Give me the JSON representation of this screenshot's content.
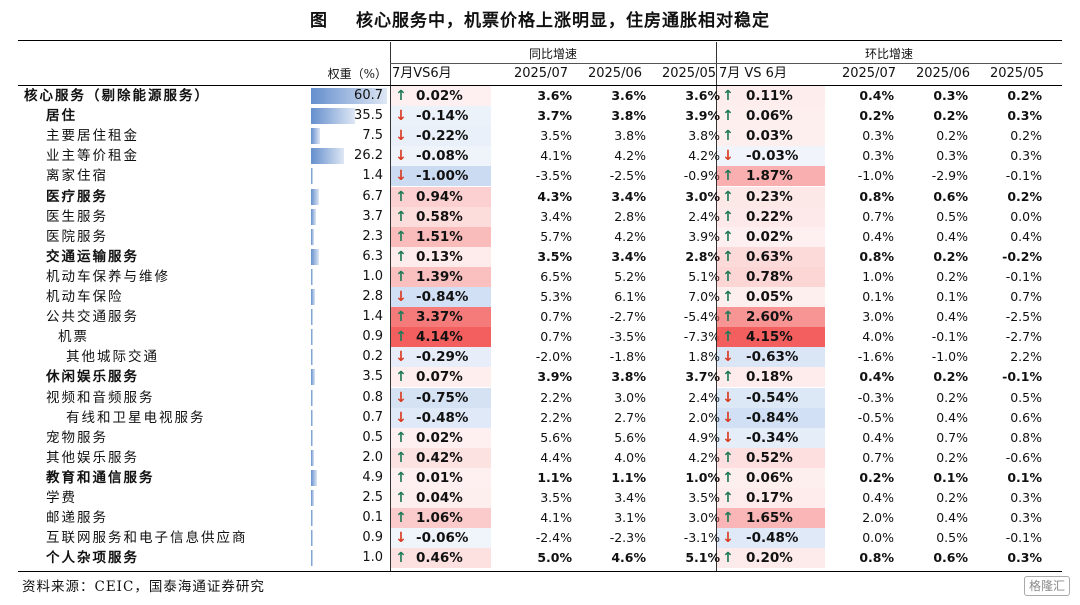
{
  "title": {
    "lead": "图",
    "text": "核心服务中，机票价格上涨明显，住房通胀相对稳定"
  },
  "group_headers": {
    "yoy": "同比增速",
    "mom": "环比增速"
  },
  "headers": {
    "weight": "权重（%）",
    "yoy_vs": "7月VS6月",
    "yoy_c1": "2025/07",
    "yoy_c2": "2025/06",
    "yoy_c3": "2025/05",
    "mom_vs": "7月 VS 6月",
    "mom_c1": "2025/07",
    "mom_c2": "2025/06",
    "mom_c3": "2025/05"
  },
  "colors": {
    "up_arrow": "#1f7a57",
    "down_arrow": "#d93a1f",
    "positive_fill": "#f24b4b",
    "negative_fill": "#5b8fd6",
    "weight_bar": "#4a7bc4"
  },
  "rows": [
    {
      "name": "核心服务（剔除能源服务）",
      "indent": 0,
      "bold": true,
      "weight": "60.7",
      "weight_num": 60.7,
      "yoy_dir": "up",
      "yoy_vs": "0.02%",
      "yoy_vs_num": 0.02,
      "yoy": [
        "3.6%",
        "3.6%",
        "3.6%"
      ],
      "mom_dir": "up",
      "mom_vs": "0.11%",
      "mom_vs_num": 0.11,
      "mom": [
        "0.4%",
        "0.3%",
        "0.2%"
      ]
    },
    {
      "name": "居住",
      "indent": 1,
      "bold": true,
      "weight": "35.5",
      "weight_num": 35.5,
      "yoy_dir": "down",
      "yoy_vs": "-0.14%",
      "yoy_vs_num": -0.14,
      "yoy": [
        "3.7%",
        "3.8%",
        "3.9%"
      ],
      "mom_dir": "up",
      "mom_vs": "0.06%",
      "mom_vs_num": 0.06,
      "mom": [
        "0.2%",
        "0.2%",
        "0.3%"
      ]
    },
    {
      "name": "主要居住租金",
      "indent": 2,
      "bold": false,
      "weight": "7.5",
      "weight_num": 7.5,
      "yoy_dir": "down",
      "yoy_vs": "-0.22%",
      "yoy_vs_num": -0.22,
      "yoy": [
        "3.5%",
        "3.8%",
        "3.8%"
      ],
      "mom_dir": "up",
      "mom_vs": "0.03%",
      "mom_vs_num": 0.03,
      "mom": [
        "0.3%",
        "0.2%",
        "0.2%"
      ]
    },
    {
      "name": "业主等价租金",
      "indent": 2,
      "bold": false,
      "weight": "26.2",
      "weight_num": 26.2,
      "yoy_dir": "down",
      "yoy_vs": "-0.08%",
      "yoy_vs_num": -0.08,
      "yoy": [
        "4.1%",
        "4.2%",
        "4.2%"
      ],
      "mom_dir": "down",
      "mom_vs": "-0.03%",
      "mom_vs_num": -0.03,
      "mom": [
        "0.3%",
        "0.3%",
        "0.3%"
      ]
    },
    {
      "name": "离家住宿",
      "indent": 2,
      "bold": false,
      "weight": "1.4",
      "weight_num": 1.4,
      "yoy_dir": "down",
      "yoy_vs": "-1.00%",
      "yoy_vs_num": -1.0,
      "yoy": [
        "-3.5%",
        "-2.5%",
        "-0.9%"
      ],
      "mom_dir": "up",
      "mom_vs": "1.87%",
      "mom_vs_num": 1.87,
      "mom": [
        "-1.0%",
        "-2.9%",
        "-0.1%"
      ]
    },
    {
      "name": "医疗服务",
      "indent": 1,
      "bold": true,
      "weight": "6.7",
      "weight_num": 6.7,
      "yoy_dir": "up",
      "yoy_vs": "0.94%",
      "yoy_vs_num": 0.94,
      "yoy": [
        "4.3%",
        "3.4%",
        "3.0%"
      ],
      "mom_dir": "up",
      "mom_vs": "0.23%",
      "mom_vs_num": 0.23,
      "mom": [
        "0.8%",
        "0.6%",
        "0.2%"
      ]
    },
    {
      "name": "医生服务",
      "indent": 2,
      "bold": false,
      "weight": "3.7",
      "weight_num": 3.7,
      "yoy_dir": "up",
      "yoy_vs": "0.58%",
      "yoy_vs_num": 0.58,
      "yoy": [
        "3.4%",
        "2.8%",
        "2.4%"
      ],
      "mom_dir": "up",
      "mom_vs": "0.22%",
      "mom_vs_num": 0.22,
      "mom": [
        "0.7%",
        "0.5%",
        "0.0%"
      ]
    },
    {
      "name": "医院服务",
      "indent": 2,
      "bold": false,
      "weight": "2.3",
      "weight_num": 2.3,
      "yoy_dir": "up",
      "yoy_vs": "1.51%",
      "yoy_vs_num": 1.51,
      "yoy": [
        "5.7%",
        "4.2%",
        "3.9%"
      ],
      "mom_dir": "up",
      "mom_vs": "0.02%",
      "mom_vs_num": 0.02,
      "mom": [
        "0.4%",
        "0.4%",
        "0.4%"
      ]
    },
    {
      "name": "交通运输服务",
      "indent": 1,
      "bold": true,
      "weight": "6.3",
      "weight_num": 6.3,
      "yoy_dir": "up",
      "yoy_vs": "0.13%",
      "yoy_vs_num": 0.13,
      "yoy": [
        "3.5%",
        "3.4%",
        "2.8%"
      ],
      "mom_dir": "up",
      "mom_vs": "0.63%",
      "mom_vs_num": 0.63,
      "mom": [
        "0.8%",
        "0.2%",
        "-0.2%"
      ]
    },
    {
      "name": "机动车保养与维修",
      "indent": 2,
      "bold": false,
      "weight": "1.0",
      "weight_num": 1.0,
      "yoy_dir": "up",
      "yoy_vs": "1.39%",
      "yoy_vs_num": 1.39,
      "yoy": [
        "6.5%",
        "5.2%",
        "5.1%"
      ],
      "mom_dir": "up",
      "mom_vs": "0.78%",
      "mom_vs_num": 0.78,
      "mom": [
        "1.0%",
        "0.2%",
        "-0.1%"
      ]
    },
    {
      "name": "机动车保险",
      "indent": 2,
      "bold": false,
      "weight": "2.8",
      "weight_num": 2.8,
      "yoy_dir": "down",
      "yoy_vs": "-0.84%",
      "yoy_vs_num": -0.84,
      "yoy": [
        "5.3%",
        "6.1%",
        "7.0%"
      ],
      "mom_dir": "up",
      "mom_vs": "0.05%",
      "mom_vs_num": 0.05,
      "mom": [
        "0.1%",
        "0.1%",
        "0.7%"
      ]
    },
    {
      "name": "公共交通服务",
      "indent": 2,
      "bold": false,
      "weight": "1.4",
      "weight_num": 1.4,
      "yoy_dir": "up",
      "yoy_vs": "3.37%",
      "yoy_vs_num": 3.37,
      "yoy": [
        "0.7%",
        "-2.7%",
        "-5.4%"
      ],
      "mom_dir": "up",
      "mom_vs": "2.60%",
      "mom_vs_num": 2.6,
      "mom": [
        "3.0%",
        "0.4%",
        "-2.5%"
      ]
    },
    {
      "name": "机票",
      "indent": 3,
      "bold": false,
      "weight": "0.9",
      "weight_num": 0.9,
      "yoy_dir": "up",
      "yoy_vs": "4.14%",
      "yoy_vs_num": 4.14,
      "yoy": [
        "0.7%",
        "-3.5%",
        "-7.3%"
      ],
      "mom_dir": "up",
      "mom_vs": "4.15%",
      "mom_vs_num": 4.15,
      "mom": [
        "4.0%",
        "-0.1%",
        "-2.7%"
      ]
    },
    {
      "name": "其他城际交通",
      "indent": 4,
      "bold": false,
      "weight": "0.2",
      "weight_num": 0.2,
      "yoy_dir": "down",
      "yoy_vs": "-0.29%",
      "yoy_vs_num": -0.29,
      "yoy": [
        "-2.0%",
        "-1.8%",
        "1.8%"
      ],
      "mom_dir": "down",
      "mom_vs": "-0.63%",
      "mom_vs_num": -0.63,
      "mom": [
        "-1.6%",
        "-1.0%",
        "2.2%"
      ]
    },
    {
      "name": "休闲娱乐服务",
      "indent": 1,
      "bold": true,
      "weight": "3.5",
      "weight_num": 3.5,
      "yoy_dir": "up",
      "yoy_vs": "0.07%",
      "yoy_vs_num": 0.07,
      "yoy": [
        "3.9%",
        "3.8%",
        "3.7%"
      ],
      "mom_dir": "up",
      "mom_vs": "0.18%",
      "mom_vs_num": 0.18,
      "mom": [
        "0.4%",
        "0.2%",
        "-0.1%"
      ]
    },
    {
      "name": "视频和音频服务",
      "indent": 2,
      "bold": false,
      "weight": "0.8",
      "weight_num": 0.8,
      "yoy_dir": "down",
      "yoy_vs": "-0.75%",
      "yoy_vs_num": -0.75,
      "yoy": [
        "2.2%",
        "3.0%",
        "2.4%"
      ],
      "mom_dir": "down",
      "mom_vs": "-0.54%",
      "mom_vs_num": -0.54,
      "mom": [
        "-0.3%",
        "0.2%",
        "0.5%"
      ]
    },
    {
      "name": "有线和卫星电视服务",
      "indent": 4,
      "bold": false,
      "weight": "0.7",
      "weight_num": 0.7,
      "yoy_dir": "down",
      "yoy_vs": "-0.48%",
      "yoy_vs_num": -0.48,
      "yoy": [
        "2.2%",
        "2.7%",
        "2.0%"
      ],
      "mom_dir": "down",
      "mom_vs": "-0.84%",
      "mom_vs_num": -0.84,
      "mom": [
        "-0.5%",
        "0.4%",
        "0.6%"
      ]
    },
    {
      "name": "宠物服务",
      "indent": 2,
      "bold": false,
      "weight": "0.5",
      "weight_num": 0.5,
      "yoy_dir": "up",
      "yoy_vs": "0.02%",
      "yoy_vs_num": 0.02,
      "yoy": [
        "5.6%",
        "5.6%",
        "4.9%"
      ],
      "mom_dir": "down",
      "mom_vs": "-0.34%",
      "mom_vs_num": -0.34,
      "mom": [
        "0.4%",
        "0.7%",
        "0.8%"
      ]
    },
    {
      "name": "其他娱乐服务",
      "indent": 2,
      "bold": false,
      "weight": "2.0",
      "weight_num": 2.0,
      "yoy_dir": "up",
      "yoy_vs": "0.42%",
      "yoy_vs_num": 0.42,
      "yoy": [
        "4.4%",
        "4.0%",
        "4.2%"
      ],
      "mom_dir": "up",
      "mom_vs": "0.52%",
      "mom_vs_num": 0.52,
      "mom": [
        "0.7%",
        "0.2%",
        "-0.6%"
      ]
    },
    {
      "name": "教育和通信服务",
      "indent": 1,
      "bold": true,
      "weight": "4.9",
      "weight_num": 4.9,
      "yoy_dir": "up",
      "yoy_vs": "0.01%",
      "yoy_vs_num": 0.01,
      "yoy": [
        "1.1%",
        "1.1%",
        "1.0%"
      ],
      "mom_dir": "up",
      "mom_vs": "0.06%",
      "mom_vs_num": 0.06,
      "mom": [
        "0.2%",
        "0.1%",
        "0.1%"
      ]
    },
    {
      "name": "学费",
      "indent": 2,
      "bold": false,
      "weight": "2.5",
      "weight_num": 2.5,
      "yoy_dir": "up",
      "yoy_vs": "0.04%",
      "yoy_vs_num": 0.04,
      "yoy": [
        "3.5%",
        "3.4%",
        "3.5%"
      ],
      "mom_dir": "up",
      "mom_vs": "0.17%",
      "mom_vs_num": 0.17,
      "mom": [
        "0.4%",
        "0.2%",
        "0.3%"
      ]
    },
    {
      "name": "邮递服务",
      "indent": 2,
      "bold": false,
      "weight": "0.1",
      "weight_num": 0.1,
      "yoy_dir": "up",
      "yoy_vs": "1.06%",
      "yoy_vs_num": 1.06,
      "yoy": [
        "4.1%",
        "3.1%",
        "3.0%"
      ],
      "mom_dir": "up",
      "mom_vs": "1.65%",
      "mom_vs_num": 1.65,
      "mom": [
        "2.0%",
        "0.4%",
        "0.3%"
      ]
    },
    {
      "name": "互联网服务和电子信息供应商",
      "indent": 2,
      "bold": false,
      "weight": "0.9",
      "weight_num": 0.9,
      "yoy_dir": "down",
      "yoy_vs": "-0.06%",
      "yoy_vs_num": -0.06,
      "yoy": [
        "-2.4%",
        "-2.3%",
        "-3.1%"
      ],
      "mom_dir": "down",
      "mom_vs": "-0.48%",
      "mom_vs_num": -0.48,
      "mom": [
        "0.0%",
        "0.5%",
        "-0.1%"
      ]
    },
    {
      "name": "个人杂项服务",
      "indent": 1,
      "bold": true,
      "weight": "1.0",
      "weight_num": 1.0,
      "yoy_dir": "up",
      "yoy_vs": "0.46%",
      "yoy_vs_num": 0.46,
      "yoy": [
        "5.0%",
        "4.6%",
        "5.1%"
      ],
      "mom_dir": "up",
      "mom_vs": "0.20%",
      "mom_vs_num": 0.2,
      "mom": [
        "0.8%",
        "0.6%",
        "0.3%"
      ]
    }
  ],
  "source": "资料来源：CEIC，国泰海通证券研究",
  "watermark": "格隆汇"
}
